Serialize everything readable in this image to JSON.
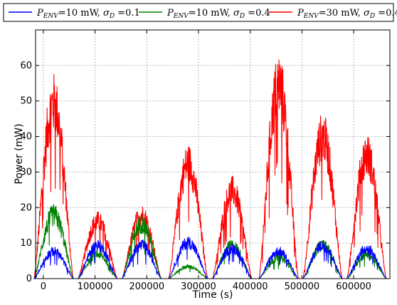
{
  "chart_data": {
    "type": "line",
    "xlabel": "Time (s)",
    "ylabel": "Power (mW)",
    "xlim": [
      -15000,
      670000
    ],
    "ylim": [
      0,
      70
    ],
    "x_ticks": [
      0,
      100000,
      200000,
      300000,
      400000,
      500000,
      600000
    ],
    "x_tick_labels": [
      "0",
      "100000",
      "200000",
      "300000",
      "400000",
      "500000",
      "600000"
    ],
    "y_ticks": [
      0,
      10,
      20,
      30,
      40,
      50,
      60
    ],
    "y_tick_labels": [
      "0",
      "10",
      "20",
      "30",
      "40",
      "50",
      "60"
    ],
    "grid": true,
    "legend_position": "top",
    "series": [
      {
        "name": "P_ENV=10 mW, σ_D =0.1",
        "legend_label": {
          "p": "P",
          "sub": "ENV",
          "mid": "=10 mW, ",
          "sigma": "σ",
          "sigma_sub": "D",
          "tail": " =0.1"
        },
        "color": "#0000ff",
        "peaks": [
          9,
          11,
          11,
          12,
          10,
          9,
          11,
          10
        ]
      },
      {
        "name": "P_ENV=10 mW, σ_D =0.4",
        "legend_label": {
          "p": "P",
          "sub": "ENV",
          "mid": "=10 mW, ",
          "sigma": "σ",
          "sigma_sub": "D",
          "tail": " =0.4"
        },
        "color": "#008000",
        "peaks": [
          21,
          8,
          18,
          4,
          11,
          7,
          11,
          8
        ]
      },
      {
        "name": "P_ENV=30 mW, σ_D =0.4",
        "legend_label": {
          "p": "P",
          "sub": "ENV",
          "mid": "=30 mW, ",
          "sigma": "σ",
          "sigma_sub": "D",
          "tail": " =0.4"
        },
        "color": "#ff0000",
        "peaks": [
          58,
          19,
          21,
          38,
          29,
          64,
          47,
          41
        ]
      }
    ],
    "day_centers": [
      20000,
      105000,
      190000,
      280000,
      365000,
      455000,
      540000,
      625000
    ]
  }
}
